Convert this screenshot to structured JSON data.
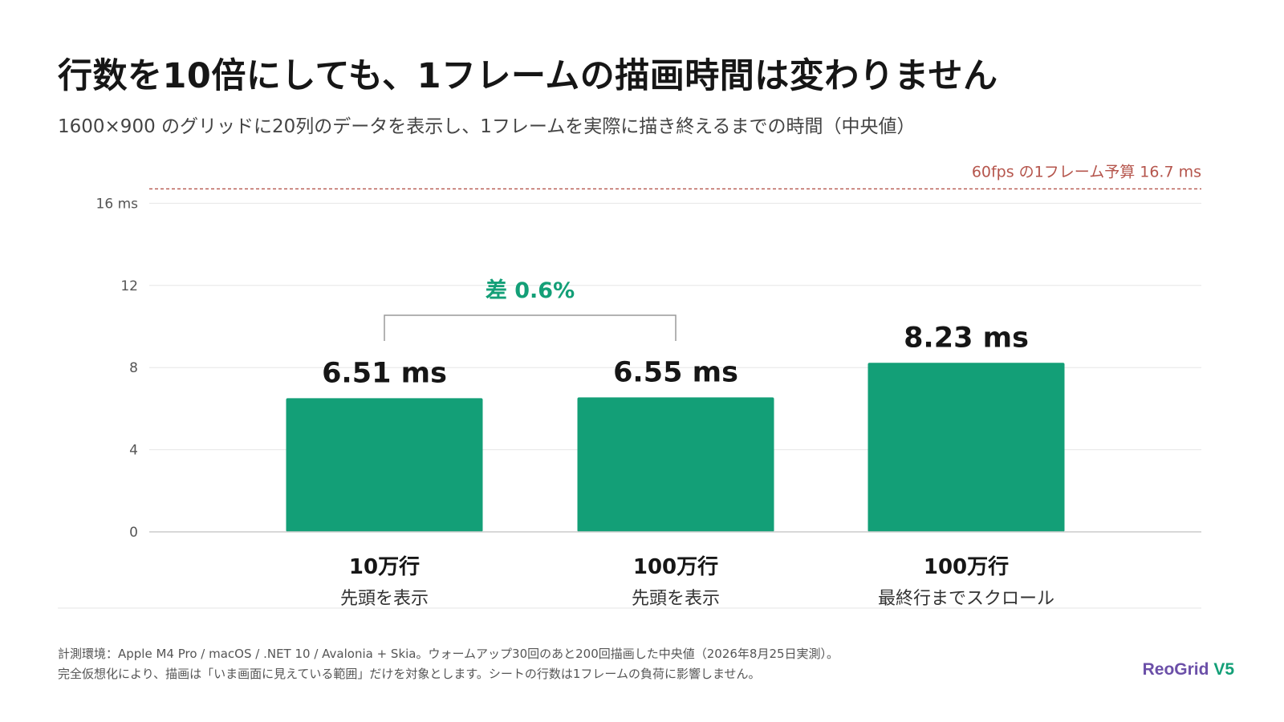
{
  "title": "行数を10倍にしても、1フレームの描画時間は変わりません",
  "subtitle": "1600×900 のグリッドに20列のデータを表示し、1フレームを実際に描き終えるまでの時間（中央値）",
  "chart_data": {
    "type": "bar",
    "categories": [
      "10万行",
      "100万行",
      "100万行"
    ],
    "category_sublabels": [
      "先頭を表示",
      "先頭を表示",
      "最終行までスクロール"
    ],
    "values": [
      6.51,
      6.55,
      8.23
    ],
    "value_labels": [
      "6.51 ms",
      "6.55 ms",
      "8.23 ms"
    ],
    "y_ticks": [
      0,
      4,
      8,
      12,
      16
    ],
    "y_tick_labels": [
      "0",
      "4",
      "8",
      "12",
      "16 ms"
    ],
    "ylim": [
      0,
      16.7
    ],
    "grid": true,
    "reference_line": {
      "value": 16.7,
      "label": "60fps の1フレーム予算  16.7 ms"
    },
    "annotation": {
      "label": "差 0.6%",
      "between": [
        0,
        1
      ]
    },
    "colors": {
      "bar": "#139f77",
      "reference": "#b5554c",
      "annotation": "#139f77",
      "grid": "#e6e6e6",
      "axis": "#cccccc"
    }
  },
  "footnote_line1": "計測環境：Apple M4 Pro / macOS / .NET 10 / Avalonia + Skia。ウォームアップ30回のあと200回描画した中央値（2026年8月25日実測）。",
  "footnote_line2": "完全仮想化により、描画は「いま画面に見えている範囲」だけを対象とします。シートの行数は1フレームの負荷に影響しません。",
  "brand": {
    "part1": "ReoGrid",
    "part2": "V5"
  }
}
